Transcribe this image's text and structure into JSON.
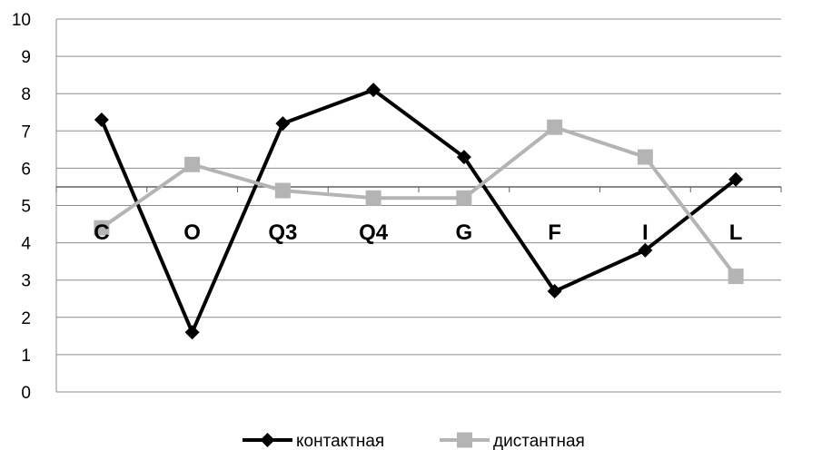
{
  "chart_data": {
    "type": "line",
    "categories": [
      "C",
      "O",
      "Q3",
      "Q4",
      "G",
      "F",
      "I",
      "L"
    ],
    "series": [
      {
        "name": "контактная",
        "values": [
          7.3,
          1.6,
          7.2,
          8.1,
          6.3,
          2.7,
          3.8,
          5.7
        ],
        "color": "#000000",
        "marker": "diamond"
      },
      {
        "name": "дистантная",
        "values": [
          4.4,
          6.1,
          5.4,
          5.2,
          5.2,
          7.1,
          6.3,
          3.1
        ],
        "color": "#b4b4b4",
        "marker": "square"
      }
    ],
    "yticks": [
      "0",
      "1",
      "2",
      "3",
      "4",
      "5",
      "6",
      "7",
      "8",
      "9",
      "10"
    ],
    "ylim": [
      0,
      10
    ],
    "reference_line": 5.5,
    "grid": true,
    "legend_position": "bottom",
    "title": "",
    "xlabel": "",
    "ylabel": ""
  }
}
